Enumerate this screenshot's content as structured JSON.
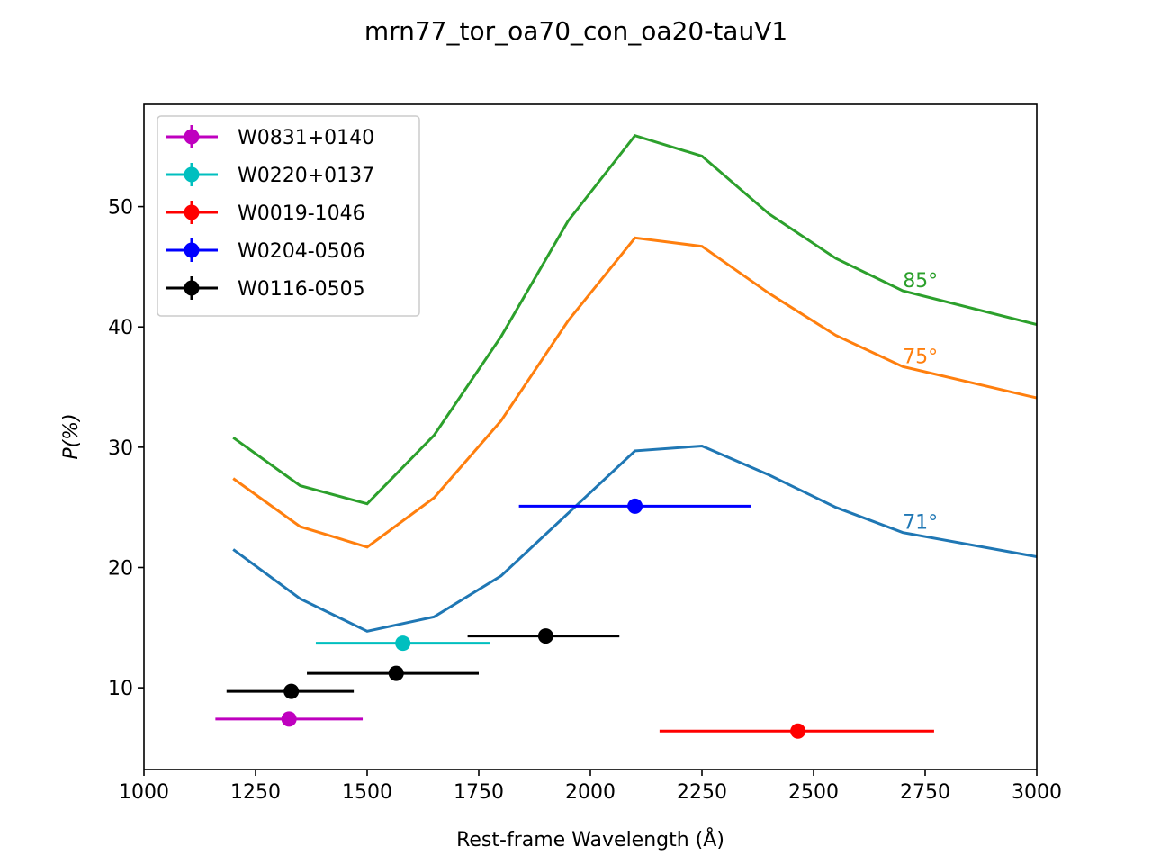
{
  "chart_data": {
    "type": "line",
    "title": "mrn77_tor_oa70_con_oa20-tauV1",
    "xlabel": "Rest-frame Wavelength (Å)",
    "ylabel": "P(%)",
    "xlim": [
      1000,
      3000
    ],
    "ylim": [
      3.2,
      58.5
    ],
    "xticks": [
      1000,
      1250,
      1500,
      1750,
      2000,
      2250,
      2500,
      2750,
      3000
    ],
    "yticks": [
      10,
      20,
      30,
      40,
      50
    ],
    "grid": false,
    "legend_position": "upper-left",
    "model_curves": [
      {
        "label": "71°",
        "color": "#1f77b4",
        "x": [
          1200,
          1350,
          1500,
          1650,
          1800,
          1950,
          2100,
          2250,
          2400,
          2550,
          2700,
          3000
        ],
        "y": [
          21.5,
          17.4,
          14.7,
          15.9,
          19.3,
          24.5,
          29.7,
          30.1,
          27.7,
          25.0,
          22.9,
          20.9
        ]
      },
      {
        "label": "75°",
        "color": "#ff7f0e",
        "x": [
          1200,
          1350,
          1500,
          1650,
          1800,
          1950,
          2100,
          2250,
          2400,
          2550,
          2700,
          3000
        ],
        "y": [
          27.4,
          23.4,
          21.7,
          25.8,
          32.2,
          40.5,
          47.4,
          46.7,
          42.8,
          39.3,
          36.7,
          34.1
        ]
      },
      {
        "label": "85°",
        "color": "#2ca02c",
        "x": [
          1200,
          1350,
          1500,
          1650,
          1800,
          1950,
          2100,
          2250,
          2400,
          2550,
          2700,
          3000
        ],
        "y": [
          30.8,
          26.8,
          25.3,
          31.0,
          39.2,
          48.8,
          55.9,
          54.2,
          49.4,
          45.7,
          43.0,
          40.2
        ]
      }
    ],
    "observations": [
      {
        "name": "W0831+0140",
        "color": "#bf00bf",
        "points": [
          {
            "x": 1325,
            "y": 7.4,
            "xerr_low": 1160,
            "xerr_high": 1490
          }
        ]
      },
      {
        "name": "W0220+0137",
        "color": "#00bfbf",
        "points": [
          {
            "x": 1580,
            "y": 13.7,
            "xerr_low": 1385,
            "xerr_high": 1775
          }
        ]
      },
      {
        "name": "W0019-1046",
        "color": "#ff0000",
        "points": [
          {
            "x": 2465,
            "y": 6.4,
            "xerr_low": 2155,
            "xerr_high": 2770,
            "yerr": 0.6
          }
        ]
      },
      {
        "name": "W0204-0506",
        "color": "#0000ff",
        "points": [
          {
            "x": 2100,
            "y": 25.1,
            "xerr_low": 1840,
            "xerr_high": 2360
          }
        ]
      },
      {
        "name": "W0116-0505",
        "color": "#000000",
        "points": [
          {
            "x": 1330,
            "y": 9.7,
            "xerr_low": 1185,
            "xerr_high": 1470
          },
          {
            "x": 1565,
            "y": 11.2,
            "xerr_low": 1365,
            "xerr_high": 1750
          },
          {
            "x": 1900,
            "y": 14.3,
            "xerr_low": 1725,
            "xerr_high": 2065
          }
        ]
      }
    ]
  }
}
